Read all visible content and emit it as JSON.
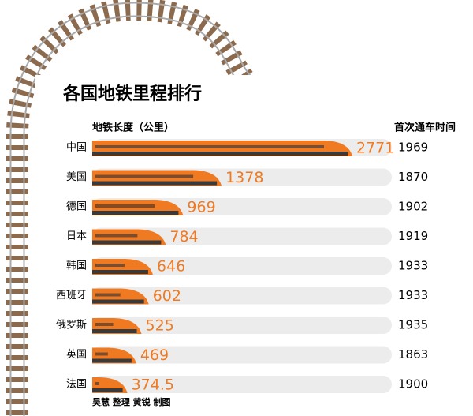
{
  "chart_data": {
    "type": "bar",
    "orientation": "horizontal",
    "title": "各国地铁里程排行",
    "value_header": "地铁长度（公里）",
    "year_header": "首次通车时间",
    "categories": [
      "中国",
      "美国",
      "德国",
      "日本",
      "韩国",
      "西班牙",
      "俄罗斯",
      "英国",
      "法国"
    ],
    "values": [
      2771,
      1378,
      969,
      784,
      646,
      602,
      525,
      469,
      374.5
    ],
    "opening_years": [
      1969,
      1870,
      1902,
      1919,
      1933,
      1933,
      1935,
      1863,
      1900
    ],
    "color": "#f07a22",
    "credit": "吴慧 整理 黄锐 制图"
  }
}
